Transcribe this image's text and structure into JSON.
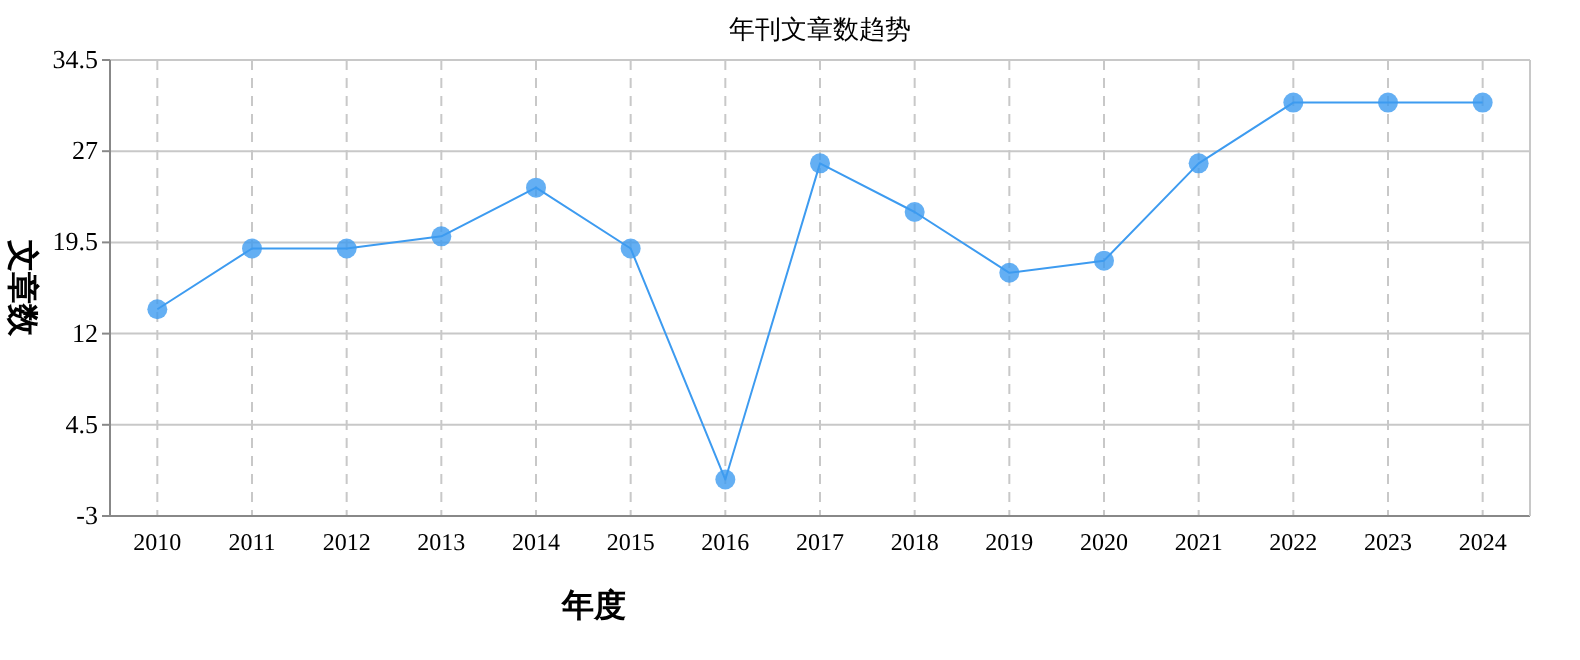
{
  "chart_data": {
    "type": "line",
    "title": "年刊文章数趋势",
    "xlabel": "年度",
    "ylabel": "文章数",
    "categories": [
      "2010",
      "2011",
      "2012",
      "2013",
      "2014",
      "2015",
      "2016",
      "2017",
      "2018",
      "2019",
      "2020",
      "2021",
      "2022",
      "2023",
      "2024"
    ],
    "series": [
      {
        "color": "#3d9bf0",
        "values": [
          14,
          19,
          19,
          20,
          24,
          19,
          0,
          26,
          22,
          17,
          18,
          26,
          31,
          31,
          31
        ]
      }
    ],
    "ylim": [
      -3,
      34.5
    ],
    "yticks": [
      -3,
      4.5,
      12,
      19.5,
      27,
      34.5
    ],
    "grid": true,
    "marker": "circle",
    "line_style": "solid"
  }
}
